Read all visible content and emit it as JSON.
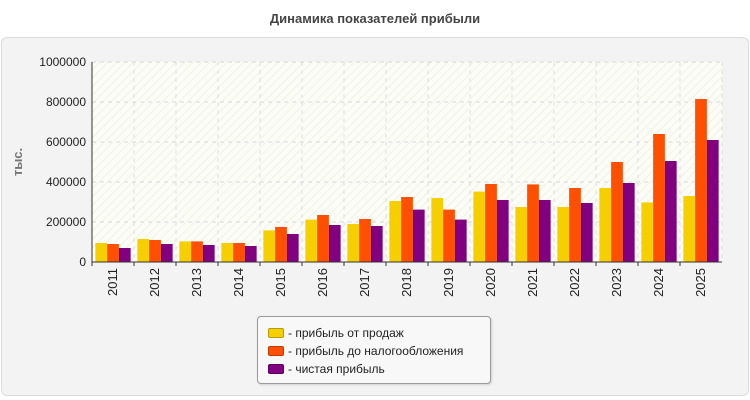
{
  "chart_data": {
    "type": "bar",
    "title": "Динамика показателей прибыли",
    "ylabel": "тыс.",
    "xlabel": "",
    "ylim": [
      0,
      1000000
    ],
    "yticks": [
      0,
      200000,
      400000,
      600000,
      800000,
      1000000
    ],
    "ytick_labels": [
      "0",
      "200000",
      "400000",
      "600000",
      "800000",
      "1000000"
    ],
    "grid": true,
    "legend_position": "bottom-center",
    "categories": [
      "2011",
      "2012",
      "2013",
      "2014",
      "2015",
      "2016",
      "2017",
      "2018",
      "2019",
      "2020",
      "2021",
      "2022",
      "2023",
      "2024",
      "2025"
    ],
    "series": [
      {
        "name": "- прибыль от продаж",
        "color": "#f5cf00",
        "values": [
          95000,
          115000,
          103000,
          95000,
          158000,
          212000,
          190000,
          305000,
          320000,
          352000,
          275000,
          275000,
          370000,
          298000,
          330000
        ]
      },
      {
        "name": "- прибыль до налогообложения",
        "color": "#ff4f00",
        "values": [
          90000,
          110000,
          103000,
          95000,
          175000,
          235000,
          215000,
          325000,
          262000,
          390000,
          388000,
          370000,
          500000,
          640000,
          815000
        ]
      },
      {
        "name": "- чистая прибыль",
        "color": "#800080",
        "values": [
          70000,
          90000,
          85000,
          80000,
          140000,
          185000,
          180000,
          262000,
          212000,
          310000,
          310000,
          295000,
          395000,
          505000,
          610000
        ]
      }
    ]
  }
}
